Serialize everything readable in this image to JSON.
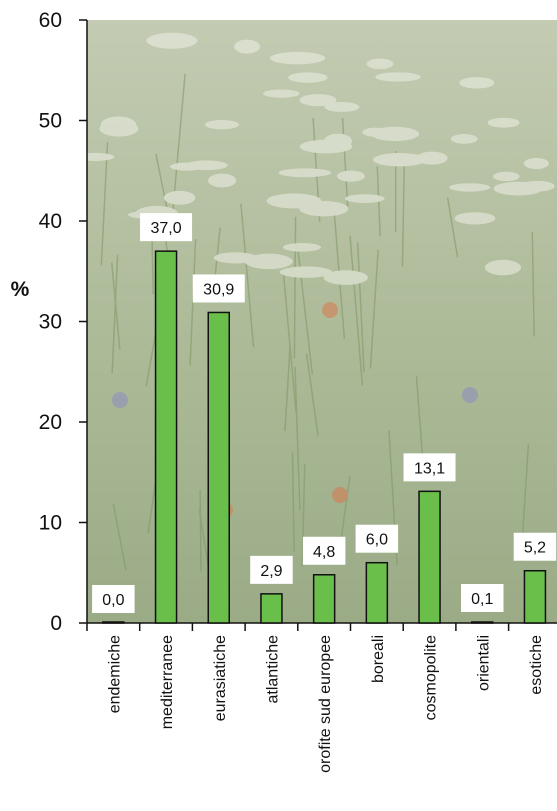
{
  "chart_data": {
    "type": "bar",
    "ylabel": "%",
    "ylim": [
      0,
      60
    ],
    "yticks": [
      "0",
      "10",
      "20",
      "30",
      "40",
      "50",
      "60"
    ],
    "categories": [
      "endemiche",
      "mediterranee",
      "eurasiatiche",
      "atlantiche",
      "orofite sud europee",
      "boreali",
      "cosmopolite",
      "orientali",
      "esotiche"
    ],
    "values": [
      0.0,
      37.0,
      30.9,
      2.9,
      4.8,
      6.0,
      13.1,
      0.1,
      5.2
    ],
    "value_labels": [
      "0,0",
      "37,0",
      "30,9",
      "2,9",
      "4,8",
      "6,0",
      "13,1",
      "0,1",
      "5,2"
    ],
    "bar_color": "#6abf4b",
    "background": "photo of wildflower meadow"
  }
}
